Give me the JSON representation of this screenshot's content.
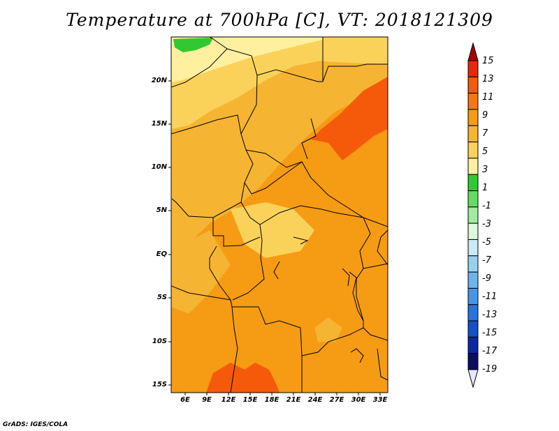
{
  "title": "Temperature at 700hPa [C], VT: 2018121309",
  "y_axis_labels": [
    "20N",
    "15N",
    "10N",
    "5N",
    "EQ",
    "5S",
    "10S",
    "15S"
  ],
  "x_axis_labels": [
    "6E",
    "9E",
    "12E",
    "15E",
    "18E",
    "21E",
    "24E",
    "27E",
    "30E",
    "33E"
  ],
  "colorbar": {
    "labels": [
      "15",
      "13",
      "11",
      "9",
      "7",
      "5",
      "3",
      "1",
      "-1",
      "-3",
      "-5",
      "-7",
      "-9",
      "-11",
      "-13",
      "-15",
      "-17",
      "-19"
    ],
    "colors": [
      "#a50000",
      "#e8280a",
      "#f55a0a",
      "#f5780f",
      "#f59b14",
      "#f5b432",
      "#fad25a",
      "#fff0a0",
      "#32c832",
      "#64dc64",
      "#a0eba0",
      "#dcfadc",
      "#c8ebf5",
      "#96d2f0",
      "#6eb4eb",
      "#4696e6",
      "#2873dc",
      "#1450c8",
      "#0a28a0",
      "#0a0f64",
      "#e6e6fa"
    ]
  },
  "credit": "GrADS: IGES/COLA"
}
